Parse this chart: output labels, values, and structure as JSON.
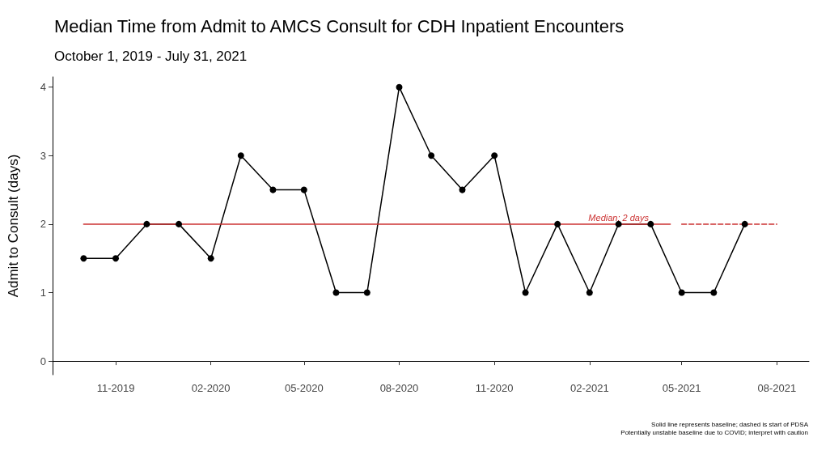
{
  "chart_data": {
    "type": "line",
    "title": "Median Time from Admit to AMCS Consult for CDH Inpatient Encounters",
    "subtitle": "October 1, 2019 - July 31, 2021",
    "ylabel": "Admit to Consult (days)",
    "x": [
      "2019-10",
      "2019-11",
      "2019-12",
      "2020-01",
      "2020-02",
      "2020-03",
      "2020-04",
      "2020-05",
      "2020-06",
      "2020-07",
      "2020-08",
      "2020-09",
      "2020-10",
      "2020-11",
      "2020-12",
      "2021-01",
      "2021-02",
      "2021-03",
      "2021-04",
      "2021-05",
      "2021-06",
      "2021-07"
    ],
    "series": [
      {
        "color": "#000000",
        "marker": "circle",
        "line_style": "solid",
        "values": [
          1.5,
          1.5,
          2,
          2,
          1.5,
          3,
          2.5,
          2.5,
          1,
          1,
          4,
          3,
          2.5,
          3,
          1,
          2,
          1,
          2,
          2,
          1,
          1,
          2
        ]
      },
      {
        "type": "line",
        "color": "#cc3333",
        "marker": "none",
        "line_style": "solid",
        "x": [
          "2019-10-01",
          "2021-04-20"
        ],
        "values": [
          2,
          2
        ]
      },
      {
        "type": "line",
        "color": "#cc3333",
        "marker": "none",
        "line_style": "dashed",
        "x": [
          "2021-05-01",
          "2021-08-01"
        ],
        "values": [
          2,
          2
        ]
      }
    ],
    "annotations": [
      {
        "text": "Median: 2 days",
        "x": "2021-03-01",
        "y": 2
      },
      "Solid line represents baseline; dashed is start of PDSA",
      "Potentially unstable baseline due to COVID; interpret with caution"
    ],
    "xlim": [
      "2019-09-01",
      "2021-09-01"
    ],
    "xticks": [
      {
        "value": "2019-11",
        "label": "11-2019"
      },
      {
        "value": "2020-02",
        "label": "02-2020"
      },
      {
        "value": "2020-05",
        "label": "05-2020"
      },
      {
        "value": "2020-08",
        "label": "08-2020"
      },
      {
        "value": "2020-11",
        "label": "11-2020"
      },
      {
        "value": "2021-02",
        "label": "02-2021"
      },
      {
        "value": "2021-05",
        "label": "05-2021"
      },
      {
        "value": "2021-08",
        "label": "08-2021"
      }
    ],
    "ylim": [
      -0.2,
      4.15
    ],
    "yticks": [
      0,
      1,
      2,
      3,
      4
    ],
    "grid": false
  }
}
